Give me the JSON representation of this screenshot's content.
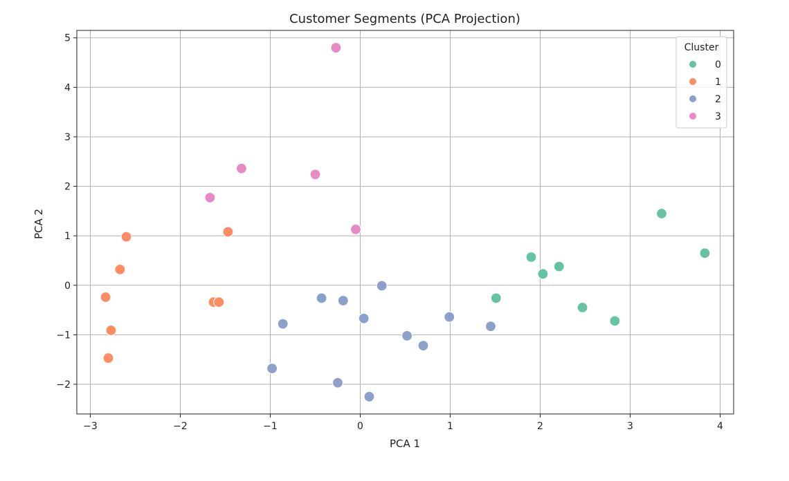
{
  "chart_data": {
    "type": "scatter",
    "title": "Customer Segments (PCA Projection)",
    "xlabel": "PCA 1",
    "ylabel": "PCA 2",
    "xlim": [
      -3.15,
      4.15
    ],
    "ylim": [
      -2.6,
      5.15
    ],
    "xticks": [
      -3,
      -2,
      -1,
      0,
      1,
      2,
      3,
      4
    ],
    "xtick_labels": [
      "−3",
      "−2",
      "−1",
      "0",
      "1",
      "2",
      "3",
      "4"
    ],
    "yticks": [
      -2,
      -1,
      0,
      1,
      2,
      3,
      4,
      5
    ],
    "ytick_labels": [
      "−2",
      "−1",
      "0",
      "1",
      "2",
      "3",
      "4",
      "5"
    ],
    "grid": true,
    "legend": {
      "title": "Cluster",
      "placement": "top-right"
    },
    "series": [
      {
        "name": "0",
        "color": "#66c2a5",
        "points": [
          [
            3.35,
            1.45
          ],
          [
            3.83,
            0.65
          ],
          [
            1.9,
            0.57
          ],
          [
            2.21,
            0.38
          ],
          [
            2.03,
            0.23
          ],
          [
            1.51,
            -0.26
          ],
          [
            2.47,
            -0.45
          ],
          [
            2.83,
            -0.72
          ]
        ]
      },
      {
        "name": "1",
        "color": "#fc8d62",
        "points": [
          [
            -2.6,
            0.98
          ],
          [
            -2.67,
            0.32
          ],
          [
            -2.83,
            -0.24
          ],
          [
            -2.77,
            -0.91
          ],
          [
            -2.8,
            -1.47
          ],
          [
            -1.47,
            1.08
          ],
          [
            -1.63,
            -0.34
          ],
          [
            -1.57,
            -0.34
          ]
        ]
      },
      {
        "name": "2",
        "color": "#8da0cb",
        "points": [
          [
            0.24,
            -0.01
          ],
          [
            -0.43,
            -0.26
          ],
          [
            -0.19,
            -0.31
          ],
          [
            0.04,
            -0.67
          ],
          [
            -0.86,
            -0.78
          ],
          [
            0.99,
            -0.64
          ],
          [
            1.45,
            -0.83
          ],
          [
            0.52,
            -1.02
          ],
          [
            0.7,
            -1.22
          ],
          [
            -0.98,
            -1.68
          ],
          [
            -0.25,
            -1.97
          ],
          [
            0.1,
            -2.25
          ]
        ]
      },
      {
        "name": "3",
        "color": "#e78ac3",
        "points": [
          [
            -0.27,
            4.8
          ],
          [
            -1.32,
            2.36
          ],
          [
            -0.5,
            2.24
          ],
          [
            -1.67,
            1.77
          ],
          [
            -0.05,
            1.13
          ]
        ]
      }
    ]
  }
}
